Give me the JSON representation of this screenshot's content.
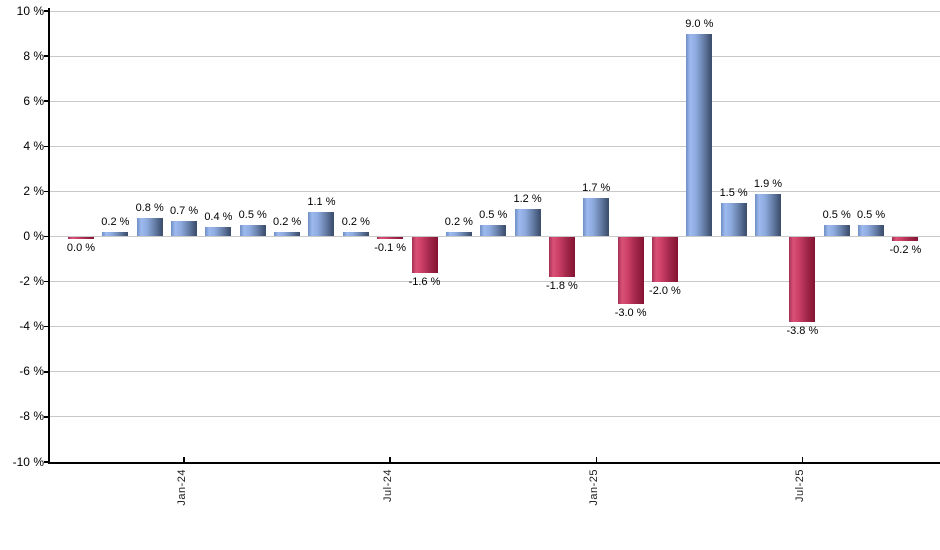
{
  "chart_data": {
    "type": "bar",
    "title": "",
    "xlabel": "",
    "ylabel": "",
    "ylim": [
      -10,
      10
    ],
    "ytick_step": 2,
    "grid": true,
    "legend_position": "none",
    "y_ticks": [
      {
        "value": 10,
        "label": "10 %"
      },
      {
        "value": 8,
        "label": "8 %"
      },
      {
        "value": 6,
        "label": "6 %"
      },
      {
        "value": 4,
        "label": "4 %"
      },
      {
        "value": 2,
        "label": "2 %"
      },
      {
        "value": 0,
        "label": "0 %"
      },
      {
        "value": -2,
        "label": "-2 %"
      },
      {
        "value": -4,
        "label": "-4 %"
      },
      {
        "value": -6,
        "label": "-6 %"
      },
      {
        "value": -8,
        "label": "-8 %"
      },
      {
        "value": -10,
        "label": "-10 %"
      }
    ],
    "x_ticks": [
      {
        "label": "Jan-24",
        "bar_index": 3
      },
      {
        "label": "Jul-24",
        "bar_index": 9
      },
      {
        "label": "Jan-25",
        "bar_index": 15
      },
      {
        "label": "Jul-25",
        "bar_index": 21
      }
    ],
    "bars": [
      {
        "value": 0.0,
        "label": "0.0 %",
        "color": "negative"
      },
      {
        "value": 0.2,
        "label": "0.2 %",
        "color": "positive"
      },
      {
        "value": 0.8,
        "label": "0.8 %",
        "color": "positive"
      },
      {
        "value": 0.7,
        "label": "0.7 %",
        "color": "positive"
      },
      {
        "value": 0.4,
        "label": "0.4 %",
        "color": "positive"
      },
      {
        "value": 0.5,
        "label": "0.5 %",
        "color": "positive"
      },
      {
        "value": 0.2,
        "label": "0.2 %",
        "color": "positive"
      },
      {
        "value": 1.1,
        "label": "1.1 %",
        "color": "positive"
      },
      {
        "value": 0.2,
        "label": "0.2 %",
        "color": "positive"
      },
      {
        "value": -0.1,
        "label": "-0.1 %",
        "color": "negative"
      },
      {
        "value": -1.6,
        "label": "-1.6 %",
        "color": "negative"
      },
      {
        "value": 0.2,
        "label": "0.2 %",
        "color": "positive"
      },
      {
        "value": 0.5,
        "label": "0.5 %",
        "color": "positive"
      },
      {
        "value": 1.2,
        "label": "1.2 %",
        "color": "positive"
      },
      {
        "value": -1.8,
        "label": "-1.8 %",
        "color": "negative"
      },
      {
        "value": 1.7,
        "label": "1.7 %",
        "color": "positive"
      },
      {
        "value": -3.0,
        "label": "-3.0 %",
        "color": "negative"
      },
      {
        "value": -2.0,
        "label": "-2.0 %",
        "color": "negative"
      },
      {
        "value": 9.0,
        "label": "9.0 %",
        "color": "positive"
      },
      {
        "value": 1.5,
        "label": "1.5 %",
        "color": "positive"
      },
      {
        "value": 1.9,
        "label": "1.9 %",
        "color": "positive"
      },
      {
        "value": -3.8,
        "label": "-3.8 %",
        "color": "negative"
      },
      {
        "value": 0.5,
        "label": "0.5 %",
        "color": "positive"
      },
      {
        "value": 0.5,
        "label": "0.5 %",
        "color": "positive"
      },
      {
        "value": -0.2,
        "label": "-0.2 %",
        "color": "negative"
      }
    ],
    "colors": {
      "positive_light": "#9db9ee",
      "positive_dark": "#3c4e6e",
      "negative_light": "#da5178",
      "negative_dark": "#851232",
      "gridline": "#c9c9c9",
      "axis": "#000000",
      "text": "#000000"
    }
  }
}
